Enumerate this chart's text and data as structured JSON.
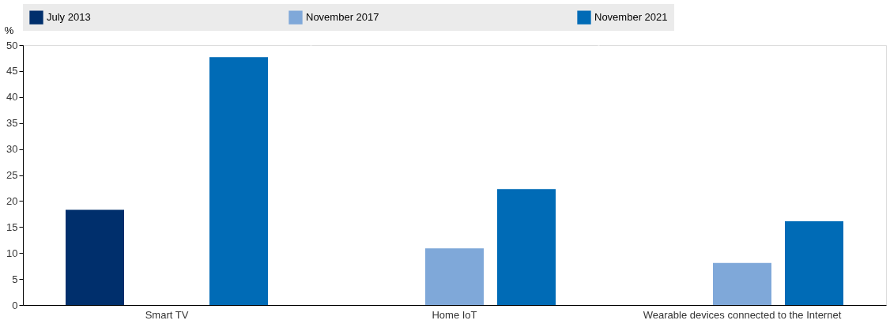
{
  "chart_data": {
    "type": "bar",
    "ylabel": "%",
    "categories": [
      "Smart TV",
      "Home IoT",
      "Wearable devices connected to the Internet"
    ],
    "series": [
      {
        "name": "July 2013",
        "color": "#002f6c",
        "values": [
          18.3,
          null,
          null
        ]
      },
      {
        "name": "November 2017",
        "color": "#7fa8d9",
        "values": [
          null,
          10.9,
          8.1
        ]
      },
      {
        "name": "November 2021",
        "color": "#006bb6",
        "values": [
          47.7,
          22.3,
          16.1
        ]
      }
    ],
    "ylim": [
      0,
      50
    ],
    "yticks": [
      0,
      5,
      10,
      15,
      20,
      25,
      30,
      35,
      40,
      45,
      50
    ],
    "grid": "x",
    "legend": "top"
  }
}
